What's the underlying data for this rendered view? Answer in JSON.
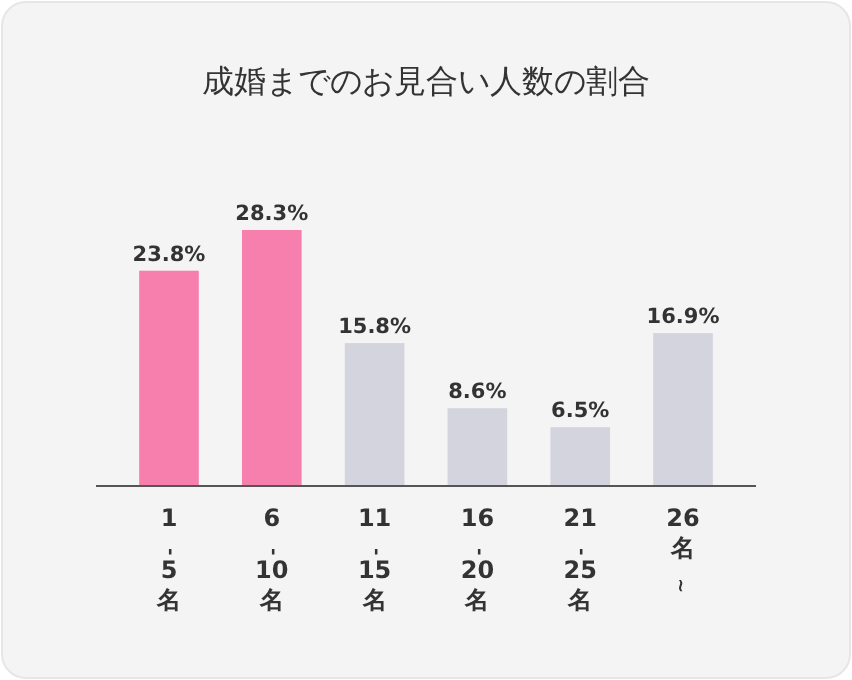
{
  "chart_data": {
    "type": "bar",
    "title": "成婚までのお見合い人数の割合",
    "categories": [
      "1-5名",
      "6-10名",
      "11-15名",
      "16-20名",
      "21-25名",
      "26名~"
    ],
    "values": [
      23.8,
      28.3,
      15.8,
      8.6,
      6.5,
      16.9
    ],
    "colors": [
      "#f77fae",
      "#f77fae",
      "#d3d4de",
      "#d3d4de",
      "#d3d4de",
      "#d3d4de"
    ],
    "value_labels": [
      "23.8%",
      "28.3%",
      "15.8%",
      "8.6%",
      "6.5%",
      "16.9%"
    ]
  }
}
